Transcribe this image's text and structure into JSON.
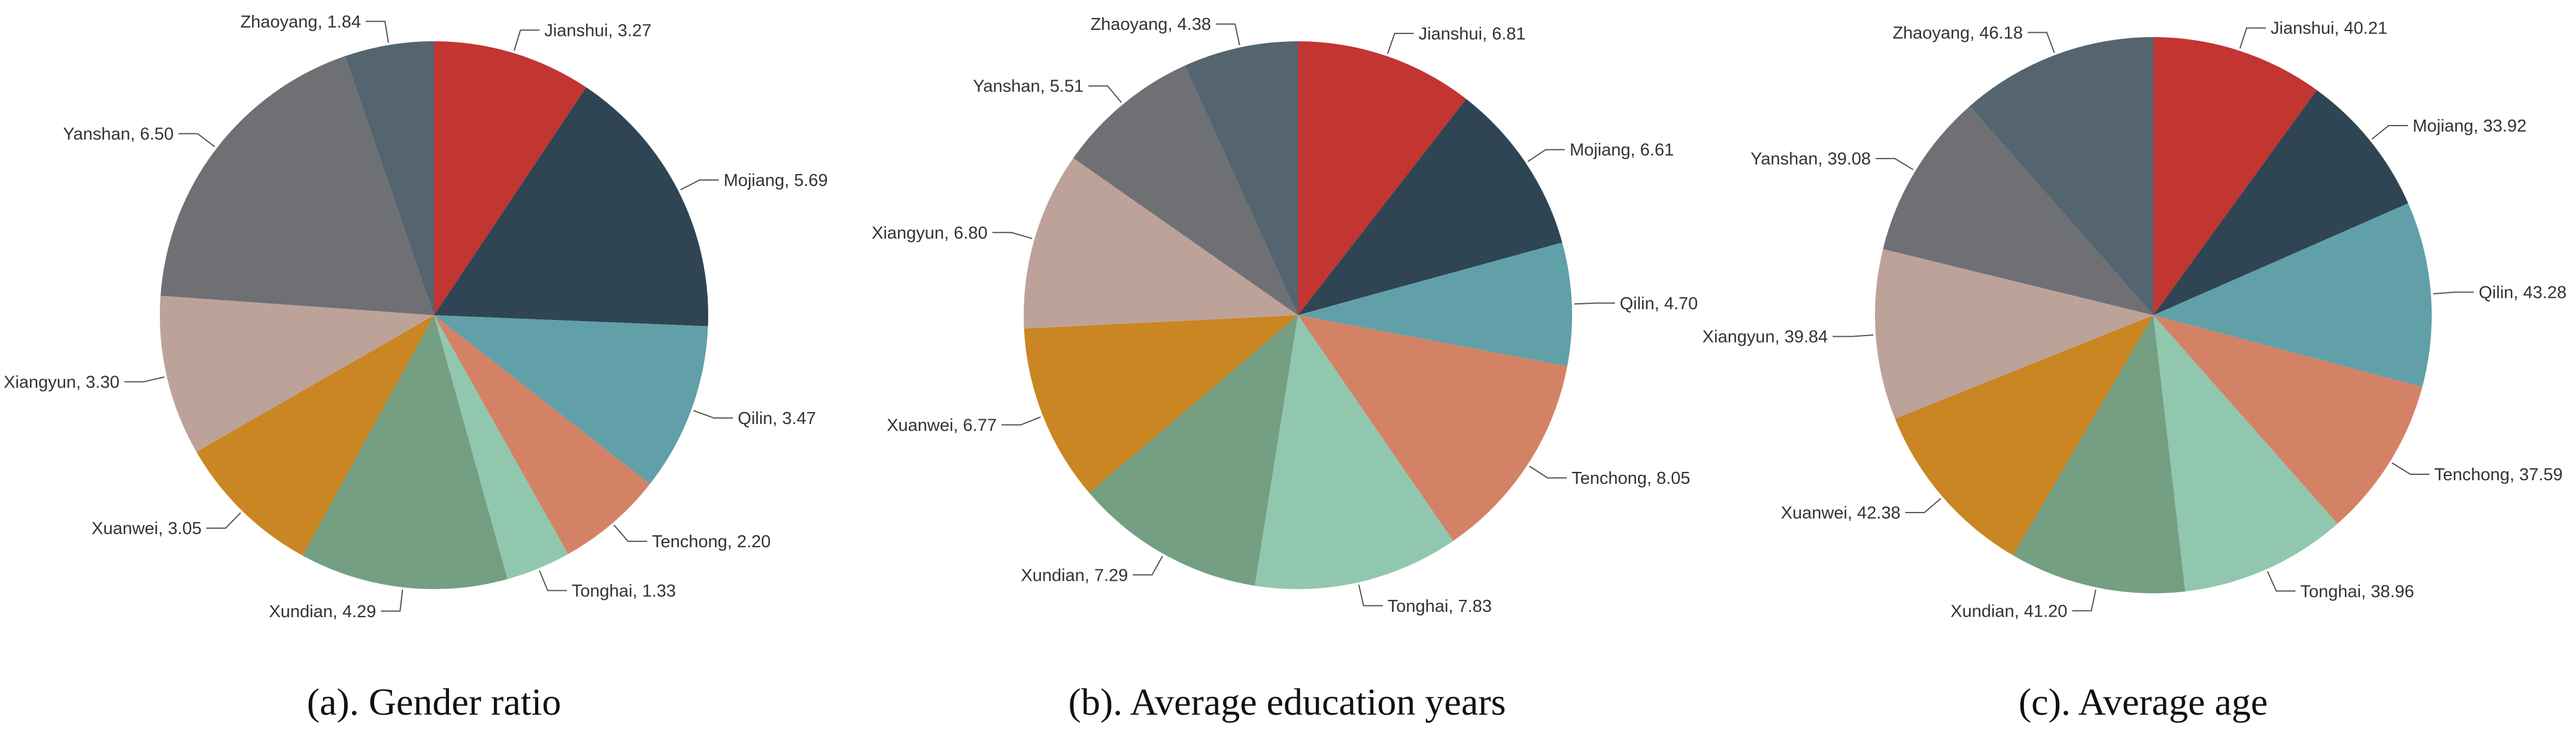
{
  "chart_data": [
    {
      "type": "pie",
      "caption": "(a). Gender ratio",
      "categories": [
        "Jianshui",
        "Mojiang",
        "Qilin",
        "Tenchong",
        "Tonghai",
        "Xundian",
        "Xuanwei",
        "Xiangyun",
        "Yanshan",
        "Zhaoyang"
      ],
      "values": [
        3.27,
        5.69,
        3.47,
        2.2,
        1.33,
        4.29,
        3.05,
        3.3,
        6.5,
        1.84
      ],
      "labels": [
        "Jianshui, 3.27",
        "Mojiang, 5.69",
        "Qilin, 3.47",
        "Tenchong, 2.20",
        "Tonghai, 1.33",
        "Xundian, 4.29",
        "Xuanwei, 3.05",
        "Xiangyun, 3.30",
        "Yanshan, 6.50",
        "Zhaoyang, 1.84"
      ],
      "start": "12 o'clock, clockwise",
      "legend": "none"
    },
    {
      "type": "pie",
      "caption": "(b). Average education years",
      "categories": [
        "Jianshui",
        "Mojiang",
        "Qilin",
        "Tenchong",
        "Tonghai",
        "Xundian",
        "Xuanwei",
        "Xiangyun",
        "Yanshan",
        "Zhaoyang"
      ],
      "values": [
        6.81,
        6.61,
        4.7,
        8.05,
        7.83,
        7.29,
        6.77,
        6.8,
        5.51,
        4.38
      ],
      "labels": [
        "Jianshui, 6.81",
        "Mojiang, 6.61",
        "Qilin, 4.70",
        "Tenchong, 8.05",
        "Tonghai, 7.83",
        "Xundian, 7.29",
        "Xuanwei, 6.77",
        "Xiangyun, 6.80",
        "Yanshan, 5.51",
        "Zhaoyang, 4.38"
      ],
      "start": "12 o'clock, clockwise",
      "legend": "none"
    },
    {
      "type": "pie",
      "caption": "(c). Average age",
      "categories": [
        "Jianshui",
        "Mojiang",
        "Qilin",
        "Tenchong",
        "Tonghai",
        "Xundian",
        "Xuanwei",
        "Xiangyun",
        "Yanshan",
        "Zhaoyang"
      ],
      "values": [
        40.21,
        33.92,
        43.28,
        37.59,
        38.96,
        41.2,
        42.38,
        39.84,
        39.08,
        46.18
      ],
      "labels": [
        "Jianshui, 40.21",
        "Mojiang, 33.92",
        "Qilin, 43.28",
        "Tenchong, 37.59",
        "Tonghai, 38.96",
        "Xundian, 41.20",
        "Xuanwei, 42.38",
        "Xiangyun, 39.84",
        "Yanshan, 39.08",
        "Zhaoyang, 46.18"
      ],
      "start": "12 o'clock, clockwise",
      "legend": "none"
    }
  ],
  "colors": [
    "#c23531",
    "#2f4554",
    "#61a0a8",
    "#d48265",
    "#91c7ae",
    "#749f83",
    "#ca8622",
    "#bda29a",
    "#6e7074",
    "#546570"
  ]
}
